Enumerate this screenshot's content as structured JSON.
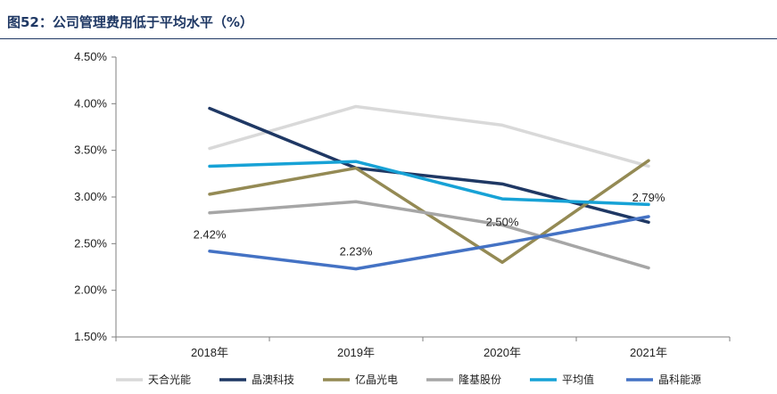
{
  "figure": {
    "title": "图52：公司管理费用低于平均水平（%）"
  },
  "chart_data": {
    "type": "line",
    "title": "图52：公司管理费用低于平均水平（%）",
    "xlabel": "",
    "ylabel": "",
    "categories": [
      "2018年",
      "2019年",
      "2020年",
      "2021年"
    ],
    "ylim": [
      1.5,
      4.5
    ],
    "yticks": [
      1.5,
      2.0,
      2.5,
      3.0,
      3.5,
      4.0,
      4.5
    ],
    "ytick_labels": [
      "1.50%",
      "2.00%",
      "2.50%",
      "3.00%",
      "3.50%",
      "4.00%",
      "4.50%"
    ],
    "grid": false,
    "legend_position": "bottom",
    "series": [
      {
        "name": "天合光能",
        "color": "#d9d9d9",
        "values": [
          3.52,
          3.97,
          3.77,
          3.33
        ]
      },
      {
        "name": "晶澳科技",
        "color": "#1f3864",
        "values": [
          3.95,
          3.31,
          3.14,
          2.73
        ]
      },
      {
        "name": "亿晶光电",
        "color": "#948a54",
        "values": [
          3.03,
          3.31,
          2.3,
          3.39
        ]
      },
      {
        "name": "隆基股份",
        "color": "#a6a6a6",
        "values": [
          2.83,
          2.95,
          2.7,
          2.24
        ]
      },
      {
        "name": "平均值",
        "color": "#17a2d6",
        "values": [
          3.33,
          3.38,
          2.98,
          2.92
        ]
      },
      {
        "name": "晶科能源",
        "color": "#4472c4",
        "values": [
          2.42,
          2.23,
          2.5,
          2.79
        ]
      }
    ],
    "data_labels": [
      {
        "series": "晶科能源",
        "index": 0,
        "text": "2.42%"
      },
      {
        "series": "晶科能源",
        "index": 1,
        "text": "2.23%"
      },
      {
        "series": "晶科能源",
        "index": 2,
        "text": "2.50%"
      },
      {
        "series": "晶科能源",
        "index": 3,
        "text": "2.79%"
      }
    ]
  }
}
